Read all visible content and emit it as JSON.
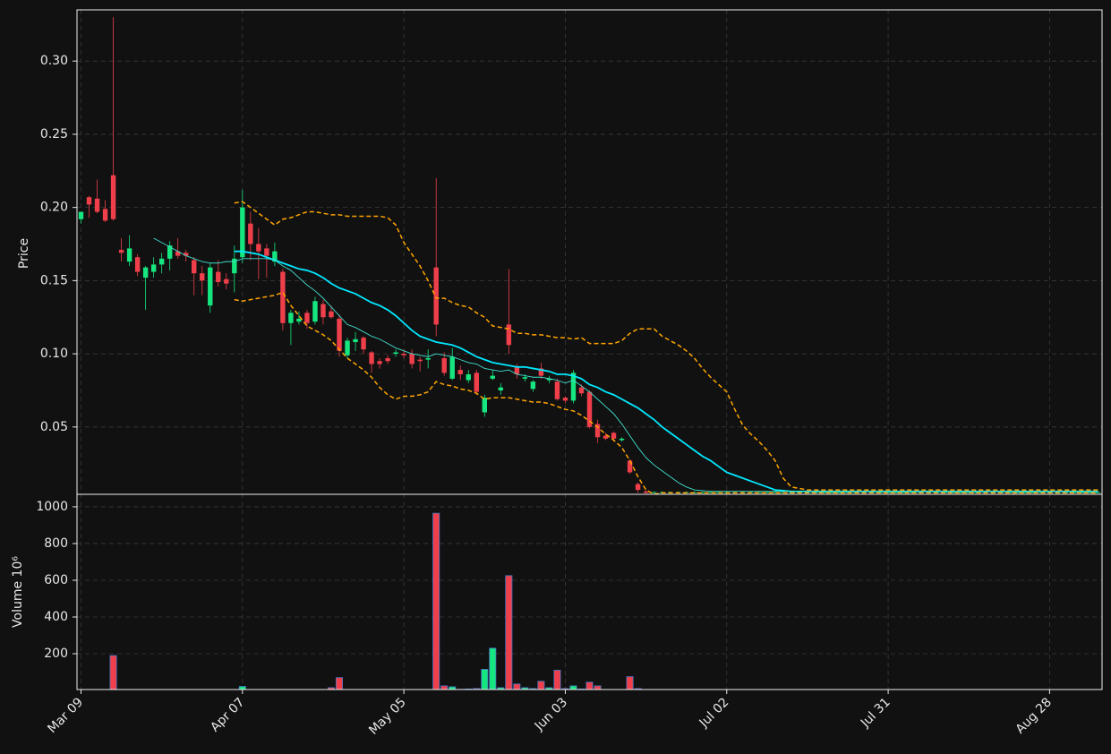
{
  "chart_data": {
    "type": "candlestick",
    "categories": [
      "Mar 09",
      null,
      null,
      null,
      null,
      null,
      null,
      null,
      null,
      null,
      null,
      null,
      null,
      null,
      null,
      null,
      null,
      null,
      null,
      null,
      "Apr 07",
      null,
      null,
      null,
      null,
      null,
      null,
      null,
      null,
      null,
      null,
      null,
      null,
      null,
      null,
      null,
      null,
      null,
      null,
      null,
      "May 05",
      null,
      null,
      null,
      null,
      null,
      null,
      null,
      null,
      null,
      null,
      null,
      null,
      null,
      null,
      null,
      null,
      null,
      null,
      null,
      "Jun 03",
      null,
      null,
      null,
      null,
      null,
      null,
      null,
      null,
      null,
      null,
      null,
      null,
      null,
      null,
      null,
      null,
      null,
      null,
      null,
      "Jul 02",
      null,
      null,
      null,
      null,
      null,
      null,
      null,
      null,
      null,
      null,
      null,
      null,
      null,
      null,
      null,
      null,
      null,
      null,
      null,
      "Jul 31",
      null,
      null,
      null,
      null,
      null,
      null,
      null,
      null,
      null,
      null,
      null,
      null,
      null,
      null,
      null,
      null,
      null,
      null,
      null,
      "Aug 28",
      null,
      null,
      null,
      null,
      null,
      null
    ],
    "open": [
      0.192,
      0.207,
      0.206,
      0.199,
      0.222,
      0.171,
      0.163,
      0.166,
      0.152,
      0.156,
      0.161,
      0.165,
      0.17,
      0.169,
      0.164,
      0.155,
      0.133,
      0.156,
      0.151,
      0.155,
      0.166,
      0.189,
      0.175,
      0.172,
      0.163,
      0.156,
      0.121,
      0.122,
      0.128,
      0.122,
      0.134,
      0.129,
      0.124,
      0.099,
      0.108,
      0.111,
      0.101,
      0.095,
      0.097,
      0.1,
      0.1,
      0.1,
      0.096,
      0.096,
      0.159,
      0.097,
      0.083,
      0.089,
      0.082,
      0.087,
      0.06,
      0.083,
      0.075,
      0.12,
      0.091,
      0.083,
      0.076,
      0.09,
      0.082,
      0.081,
      0.07,
      0.068,
      0.077,
      0.074,
      0.052,
      0.044,
      0.046,
      0.041,
      0.027,
      0.011,
      0.006,
      0.0055,
      0.0055,
      0.0055,
      0.0055,
      0.0055,
      0.0055,
      0.0055,
      0.0055,
      0.0055,
      0.0055,
      0.0055,
      0.0055,
      0.0055,
      0.0055,
      0.0055,
      0.0055,
      0.0055,
      0.0055,
      0.0055,
      0.0055,
      0.0055,
      0.0055,
      0.0055,
      0.0055,
      0.0055,
      0.0055,
      0.0055,
      0.0055,
      0.0055,
      0.0055,
      0.0055,
      0.0055,
      0.0055,
      0.0055,
      0.0055,
      0.0055,
      0.0055,
      0.0055,
      0.0055,
      0.0055,
      0.0055,
      0.0055,
      0.0055,
      0.0055,
      0.0055,
      0.0055,
      0.0055,
      0.0055,
      0.0055,
      0.0055,
      0.0055,
      0.0055,
      0.0055,
      0.0055,
      0.0055,
      0.0055
    ],
    "high": [
      0.197,
      0.208,
      0.219,
      0.205,
      0.33,
      0.179,
      0.181,
      0.168,
      0.16,
      0.166,
      0.169,
      0.177,
      0.179,
      0.171,
      0.166,
      0.16,
      0.162,
      0.164,
      0.155,
      0.174,
      0.212,
      0.197,
      0.186,
      0.175,
      0.176,
      0.158,
      0.13,
      0.129,
      0.13,
      0.139,
      0.137,
      0.133,
      0.127,
      0.111,
      0.115,
      0.112,
      0.102,
      0.097,
      0.099,
      0.103,
      0.103,
      0.103,
      0.098,
      0.103,
      0.22,
      0.101,
      0.104,
      0.092,
      0.089,
      0.089,
      0.072,
      0.089,
      0.08,
      0.158,
      0.093,
      0.086,
      0.082,
      0.094,
      0.085,
      0.083,
      0.071,
      0.089,
      0.079,
      0.075,
      0.055,
      0.046,
      0.047,
      0.043,
      0.028,
      0.012,
      0.007,
      0.006,
      0.006,
      0.006,
      0.006,
      0.006,
      0.006,
      0.006,
      0.006,
      0.006,
      0.006,
      0.006,
      0.006,
      0.006,
      0.006,
      0.006,
      0.006,
      0.006,
      0.006,
      0.006,
      0.006,
      0.006,
      0.006,
      0.006,
      0.006,
      0.006,
      0.006,
      0.006,
      0.006,
      0.006,
      0.006,
      0.006,
      0.006,
      0.006,
      0.006,
      0.006,
      0.006,
      0.006,
      0.006,
      0.006,
      0.006,
      0.006,
      0.006,
      0.006,
      0.006,
      0.006,
      0.006,
      0.006,
      0.006,
      0.006,
      0.006,
      0.006,
      0.006,
      0.006,
      0.006,
      0.006,
      0.006
    ],
    "low": [
      0.189,
      0.193,
      0.196,
      0.19,
      0.191,
      0.163,
      0.16,
      0.153,
      0.13,
      0.152,
      0.155,
      0.157,
      0.165,
      0.163,
      0.14,
      0.14,
      0.128,
      0.146,
      0.144,
      0.142,
      0.162,
      0.164,
      0.151,
      0.152,
      0.16,
      0.116,
      0.106,
      0.12,
      0.117,
      0.12,
      0.12,
      0.124,
      0.098,
      0.097,
      0.102,
      0.1,
      0.087,
      0.09,
      0.093,
      0.098,
      0.097,
      0.09,
      0.088,
      0.09,
      0.112,
      0.085,
      0.082,
      0.082,
      0.08,
      0.072,
      0.057,
      0.082,
      0.072,
      0.1,
      0.083,
      0.081,
      0.074,
      0.083,
      0.08,
      0.068,
      0.066,
      0.066,
      0.071,
      0.049,
      0.039,
      0.041,
      0.04,
      0.04,
      0.018,
      0.005,
      0.004,
      0.005,
      0.005,
      0.005,
      0.005,
      0.005,
      0.005,
      0.005,
      0.005,
      0.005,
      0.005,
      0.005,
      0.005,
      0.005,
      0.005,
      0.005,
      0.005,
      0.005,
      0.005,
      0.005,
      0.005,
      0.005,
      0.005,
      0.005,
      0.005,
      0.005,
      0.005,
      0.005,
      0.005,
      0.005,
      0.005,
      0.005,
      0.005,
      0.005,
      0.005,
      0.005,
      0.005,
      0.005,
      0.005,
      0.005,
      0.005,
      0.005,
      0.005,
      0.005,
      0.005,
      0.005,
      0.005,
      0.005,
      0.005,
      0.005,
      0.005,
      0.005,
      0.005,
      0.005,
      0.005,
      0.005,
      0.005
    ],
    "close": [
      0.197,
      0.202,
      0.197,
      0.191,
      0.192,
      0.169,
      0.172,
      0.156,
      0.159,
      0.161,
      0.165,
      0.174,
      0.167,
      0.167,
      0.155,
      0.15,
      0.159,
      0.149,
      0.148,
      0.165,
      0.2,
      0.175,
      0.17,
      0.167,
      0.17,
      0.121,
      0.128,
      0.124,
      0.121,
      0.136,
      0.125,
      0.125,
      0.102,
      0.109,
      0.11,
      0.103,
      0.093,
      0.093,
      0.095,
      0.101,
      0.099,
      0.093,
      0.095,
      0.097,
      0.12,
      0.087,
      0.098,
      0.086,
      0.086,
      0.074,
      0.07,
      0.085,
      0.077,
      0.106,
      0.086,
      0.084,
      0.081,
      0.085,
      0.083,
      0.069,
      0.068,
      0.087,
      0.073,
      0.05,
      0.043,
      0.042,
      0.042,
      0.042,
      0.019,
      0.007,
      0.005,
      0.0055,
      0.0055,
      0.0055,
      0.0055,
      0.0055,
      0.0055,
      0.0055,
      0.0055,
      0.0055,
      0.0055,
      0.0055,
      0.0055,
      0.0055,
      0.0055,
      0.0055,
      0.0055,
      0.0055,
      0.0055,
      0.0055,
      0.0055,
      0.0055,
      0.0055,
      0.0055,
      0.0055,
      0.0055,
      0.0055,
      0.0055,
      0.0055,
      0.0055,
      0.0055,
      0.0055,
      0.0055,
      0.0055,
      0.0055,
      0.0055,
      0.0055,
      0.0055,
      0.0055,
      0.0055,
      0.0055,
      0.0055,
      0.0055,
      0.0055,
      0.0055,
      0.0055,
      0.0055,
      0.0055,
      0.0055,
      0.0055,
      0.0055,
      0.0055,
      0.0055,
      0.0055,
      0.0055,
      0.0055,
      0.0055
    ],
    "up_color": "#16e67f",
    "down_color": "#ee3f4b",
    "ylim": [
      0.004,
      0.335
    ],
    "yticks": [
      0.05,
      {
        "value": 0.1,
        "label": "0.10"
      },
      0.15,
      {
        "value": 0.2,
        "label": "0.20"
      },
      0.25,
      {
        "value": 0.3,
        "label": "0.30"
      }
    ],
    "ylabel": "Price",
    "grid": true,
    "lines": [
      {
        "color": "#00e8ff",
        "width": 1.8,
        "dashed": false,
        "values": [
          null,
          null,
          null,
          null,
          null,
          null,
          null,
          null,
          null,
          null,
          null,
          null,
          null,
          null,
          null,
          null,
          null,
          null,
          null,
          0.17,
          0.17,
          0.169,
          0.168,
          0.166,
          0.164,
          0.162,
          0.16,
          0.158,
          0.157,
          0.155,
          0.152,
          0.148,
          0.145,
          0.143,
          0.141,
          0.138,
          0.135,
          0.133,
          0.13,
          0.126,
          0.121,
          0.116,
          0.112,
          0.11,
          0.108,
          0.107,
          0.106,
          0.104,
          0.101,
          0.098,
          0.096,
          0.094,
          0.093,
          0.092,
          0.091,
          0.091,
          0.09,
          0.089,
          0.088,
          0.086,
          0.086,
          0.085,
          0.083,
          0.079,
          0.077,
          0.074,
          0.072,
          0.069,
          0.066,
          0.063,
          0.059,
          0.055,
          0.05,
          0.046,
          0.042,
          0.038,
          0.034,
          0.03,
          0.027,
          0.023,
          0.019,
          0.017,
          0.015,
          0.013,
          0.011,
          0.009,
          0.007,
          0.0065,
          0.006,
          0.006,
          0.006,
          0.006,
          0.006,
          0.006,
          0.006,
          0.006,
          0.006,
          0.006,
          0.006,
          0.006,
          0.006,
          0.006,
          0.006,
          0.006,
          0.006,
          0.006,
          0.006,
          0.006,
          0.006,
          0.006,
          0.006,
          0.006,
          0.006,
          0.006,
          0.006,
          0.006,
          0.006,
          0.006,
          0.006,
          0.006,
          0.006,
          0.006,
          0.006,
          0.006,
          0.006,
          0.006,
          0.006
        ]
      },
      {
        "color": "#40e0d0",
        "width": 0.9,
        "dashed": false,
        "values": [
          null,
          null,
          null,
          null,
          null,
          null,
          null,
          null,
          null,
          0.179,
          0.176,
          0.173,
          0.17,
          0.167,
          0.165,
          0.163,
          0.162,
          0.162,
          0.163,
          0.163,
          0.165,
          0.165,
          0.165,
          0.165,
          0.164,
          0.16,
          0.157,
          0.152,
          0.147,
          0.143,
          0.138,
          0.132,
          0.126,
          0.12,
          0.118,
          0.115,
          0.112,
          0.11,
          0.107,
          0.104,
          0.102,
          0.1,
          0.099,
          0.098,
          0.1,
          0.099,
          0.098,
          0.096,
          0.094,
          0.093,
          0.09,
          0.089,
          0.088,
          0.089,
          0.086,
          0.085,
          0.084,
          0.084,
          0.083,
          0.082,
          0.08,
          0.082,
          0.078,
          0.074,
          0.069,
          0.064,
          0.059,
          0.052,
          0.044,
          0.036,
          0.029,
          0.024,
          0.02,
          0.016,
          0.012,
          0.009,
          0.007,
          0.0065,
          0.006,
          0.006,
          0.006,
          0.006,
          0.006,
          0.006,
          0.006,
          0.006,
          0.006,
          0.006,
          0.006,
          0.006,
          0.006,
          0.006,
          0.006,
          0.006,
          0.006,
          0.006,
          0.006,
          0.006,
          0.006,
          0.006,
          0.006,
          0.006,
          0.006,
          0.006,
          0.006,
          0.006,
          0.006,
          0.006,
          0.006,
          0.006,
          0.006,
          0.006,
          0.006,
          0.006,
          0.006,
          0.006,
          0.006,
          0.006,
          0.006,
          0.006,
          0.006,
          0.006,
          0.006,
          0.006,
          0.006,
          0.006,
          0.006
        ]
      },
      {
        "color": "#ffa500",
        "width": 1.5,
        "dashed": true,
        "values": [
          null,
          null,
          null,
          null,
          null,
          null,
          null,
          null,
          null,
          null,
          null,
          null,
          null,
          null,
          null,
          null,
          null,
          null,
          null,
          0.203,
          0.204,
          0.2,
          0.196,
          0.192,
          0.188,
          0.192,
          0.193,
          0.195,
          0.197,
          0.197,
          0.196,
          0.195,
          0.195,
          0.194,
          0.194,
          0.194,
          0.194,
          0.194,
          0.193,
          0.188,
          0.176,
          0.168,
          0.16,
          0.15,
          0.138,
          0.138,
          0.135,
          0.133,
          0.132,
          0.128,
          0.125,
          0.119,
          0.118,
          0.117,
          0.114,
          0.114,
          0.113,
          0.113,
          0.112,
          0.111,
          0.111,
          0.11,
          0.111,
          0.107,
          0.107,
          0.107,
          0.107,
          0.109,
          0.114,
          0.117,
          0.117,
          0.117,
          0.112,
          0.109,
          0.106,
          0.102,
          0.097,
          0.09,
          0.084,
          0.079,
          0.074,
          0.062,
          0.051,
          0.045,
          0.04,
          0.034,
          0.027,
          0.015,
          0.009,
          0.008,
          0.007,
          0.007,
          0.007,
          0.007,
          0.007,
          0.007,
          0.007,
          0.007,
          0.007,
          0.007,
          0.007,
          0.007,
          0.007,
          0.007,
          0.007,
          0.007,
          0.007,
          0.007,
          0.007,
          0.007,
          0.007,
          0.007,
          0.007,
          0.007,
          0.007,
          0.007,
          0.007,
          0.007,
          0.007,
          0.007,
          0.007,
          0.007,
          0.007,
          0.007,
          0.007,
          0.007,
          0.007
        ]
      },
      {
        "color": "#ffa500",
        "width": 1.5,
        "dashed": true,
        "values": [
          null,
          null,
          null,
          null,
          null,
          null,
          null,
          null,
          null,
          null,
          null,
          null,
          null,
          null,
          null,
          null,
          null,
          null,
          null,
          0.137,
          0.136,
          0.137,
          0.138,
          0.139,
          0.14,
          0.142,
          0.133,
          0.126,
          0.119,
          0.116,
          0.113,
          0.109,
          0.103,
          0.097,
          0.093,
          0.089,
          0.084,
          0.077,
          0.072,
          0.069,
          0.071,
          0.071,
          0.072,
          0.074,
          0.081,
          0.079,
          0.078,
          0.076,
          0.075,
          0.073,
          0.069,
          0.07,
          0.07,
          0.07,
          0.069,
          0.068,
          0.067,
          0.067,
          0.066,
          0.064,
          0.062,
          0.061,
          0.058,
          0.054,
          0.05,
          0.045,
          0.041,
          0.036,
          0.027,
          0.016,
          0.007,
          0.004,
          0.005,
          0.005,
          0.005,
          0.005,
          0.005,
          0.005,
          0.005,
          0.005,
          0.005,
          0.005,
          0.005,
          0.005,
          0.005,
          0.005,
          0.005,
          0.005,
          0.005,
          0.005,
          0.005,
          0.005,
          0.005,
          0.005,
          0.005,
          0.005,
          0.005,
          0.005,
          0.005,
          0.005,
          0.005,
          0.005,
          0.005,
          0.005,
          0.005,
          0.005,
          0.005,
          0.005,
          0.005,
          0.005,
          0.005,
          0.005,
          0.005,
          0.005,
          0.005,
          0.005,
          0.005,
          0.005,
          0.005,
          0.005,
          0.005,
          0.005,
          0.005,
          0.005,
          0.005,
          0.005,
          0.005
        ]
      }
    ],
    "volume": {
      "edge_color": "#4a78c8",
      "ylabel": "Volume  10⁶",
      "ylim": [
        5,
        1068
      ],
      "yticks": [
        200,
        400,
        600,
        800,
        1000
      ],
      "values": [
        3,
        2,
        2,
        3,
        190,
        5,
        3,
        2,
        2,
        2,
        1,
        1,
        1,
        1,
        1,
        1,
        1,
        1,
        1,
        2,
        22,
        3,
        3,
        2,
        2,
        4,
        5,
        4,
        5,
        4,
        5,
        15,
        70,
        3,
        4,
        4,
        3,
        2,
        2,
        2,
        2,
        2,
        2,
        3,
        965,
        25,
        20,
        6,
        8,
        10,
        115,
        230,
        15,
        625,
        35,
        15,
        10,
        50,
        15,
        110,
        10,
        25,
        8,
        45,
        25,
        5,
        5,
        5,
        75,
        10,
        5,
        3,
        2,
        2,
        1,
        1,
        1,
        1,
        1,
        1,
        0,
        0,
        0,
        0,
        0,
        0,
        0,
        0,
        0,
        0,
        0,
        0,
        0,
        0,
        0,
        0,
        0,
        0,
        0,
        0,
        0,
        0,
        0,
        0,
        0,
        0,
        0,
        0,
        0,
        0,
        0,
        0,
        0,
        0,
        0,
        0,
        0,
        0,
        0,
        0,
        0,
        0,
        0,
        0,
        0,
        0,
        0
      ]
    }
  }
}
